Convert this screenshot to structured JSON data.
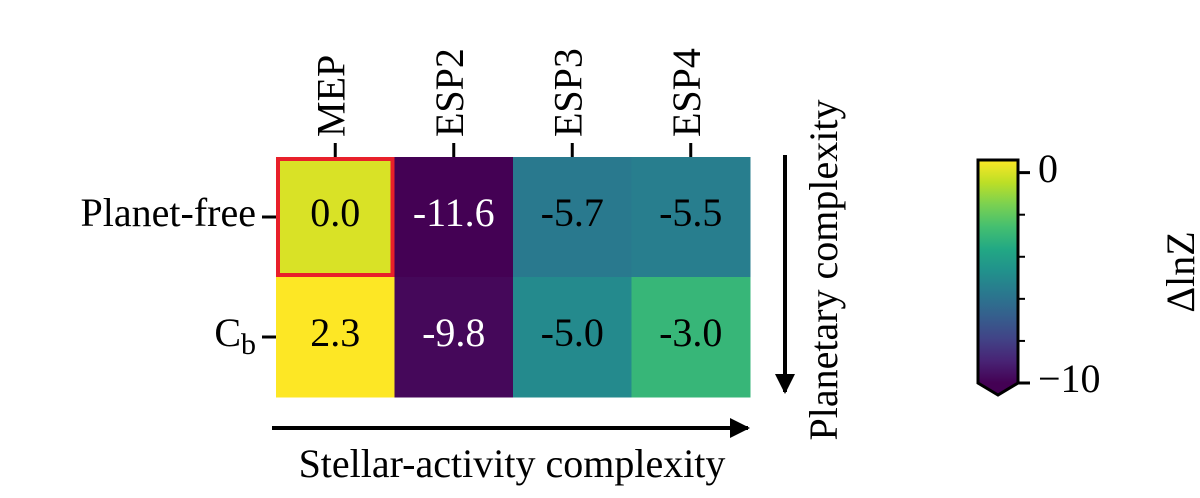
{
  "chart_data": {
    "type": "heatmap",
    "x_categories": [
      "MEP",
      "ESP2",
      "ESP3",
      "ESP4"
    ],
    "y_categories": [
      "Planet-free",
      {
        "base": "C",
        "sub": "b"
      }
    ],
    "values": [
      [
        0.0,
        -11.6,
        -5.7,
        -5.5
      ],
      [
        2.3,
        -9.8,
        -5.0,
        -3.0
      ]
    ],
    "value_labels": [
      [
        "0.0",
        "-11.6",
        "-5.7",
        "-5.5"
      ],
      [
        "2.3",
        "-9.8",
        "-5.0",
        "-3.0"
      ]
    ],
    "colormap": "viridis",
    "clim": [
      -10,
      0.6
    ],
    "colorbar_extend": "min",
    "colorbar_ticks": [
      0,
      {
        "value": -10,
        "label": "−10"
      }
    ],
    "colorbar_minor_ticks": [
      -8,
      -6,
      -4,
      -2
    ],
    "colorbar_label": "ΔlnZ",
    "highlight_cell": [
      0,
      0
    ],
    "highlight_color": "#e8202a",
    "x_annotation": "Stellar-activity complexity",
    "y_annotation": "Planetary complexity"
  }
}
